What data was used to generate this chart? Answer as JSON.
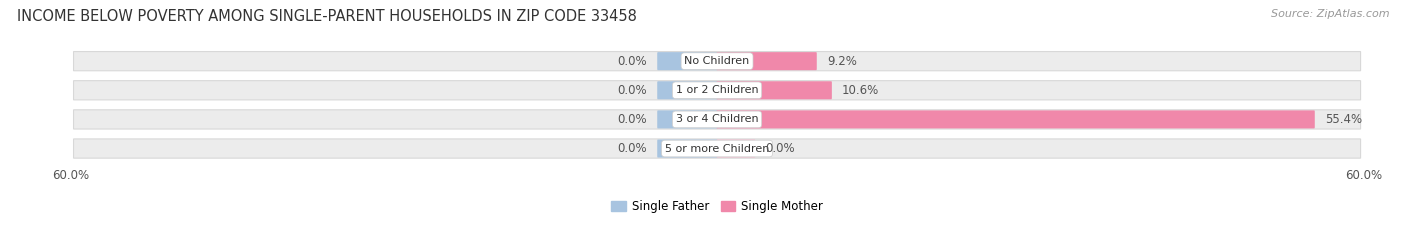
{
  "title": "INCOME BELOW POVERTY AMONG SINGLE-PARENT HOUSEHOLDS IN ZIP CODE 33458",
  "source": "Source: ZipAtlas.com",
  "categories": [
    "No Children",
    "1 or 2 Children",
    "3 or 4 Children",
    "5 or more Children"
  ],
  "single_father": [
    0.0,
    0.0,
    0.0,
    0.0
  ],
  "single_mother": [
    9.2,
    10.6,
    55.4,
    0.0
  ],
  "axis_max": 60.0,
  "father_stub": 5.5,
  "mother_stub": 3.5,
  "color_father": "#a8c4e0",
  "color_mother": "#f088aa",
  "color_mother_stub": "#f5b8cc",
  "bar_row_bg": "#ececec",
  "row_edge_color": "#d8d8d8",
  "title_fontsize": 10.5,
  "source_fontsize": 8,
  "label_fontsize": 8.5,
  "category_fontsize": 8,
  "legend_fontsize": 8.5,
  "legend_labels": [
    "Single Father",
    "Single Mother"
  ]
}
